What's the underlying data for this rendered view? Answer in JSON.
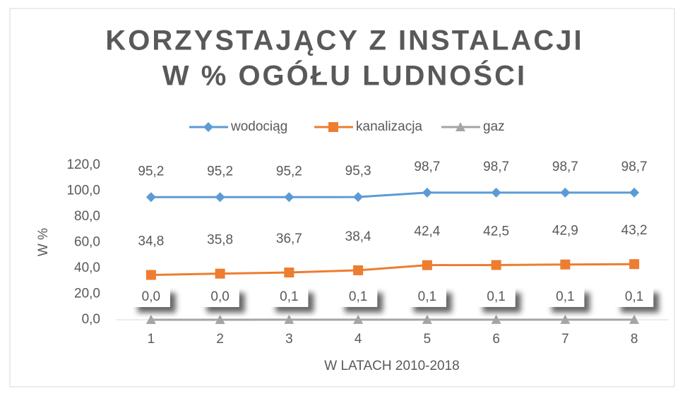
{
  "chart_data": {
    "type": "line",
    "title": [
      "KORZYSTAJĄCY Z INSTALACJI",
      "W % OGÓŁU LUDNOŚCI"
    ],
    "x_label": "W LATACH 2010-2018",
    "y_label": "W %",
    "categories": [
      "1",
      "2",
      "3",
      "4",
      "5",
      "6",
      "7",
      "8"
    ],
    "series": [
      {
        "name": "wodociąg",
        "color": "#5b9bd5",
        "marker": "diamond",
        "values": [
          95.2,
          95.2,
          95.2,
          95.3,
          98.7,
          98.7,
          98.7,
          98.7
        ],
        "value_labels": [
          "95,2",
          "95,2",
          "95,2",
          "95,3",
          "98,7",
          "98,7",
          "98,7",
          "98,7"
        ]
      },
      {
        "name": "kanalizacja",
        "color": "#ed7d31",
        "marker": "square",
        "values": [
          34.8,
          35.8,
          36.7,
          38.4,
          42.4,
          42.5,
          42.9,
          43.2
        ],
        "value_labels": [
          "34,8",
          "35,8",
          "36,7",
          "38,4",
          "42,4",
          "42,5",
          "42,9",
          "43,2"
        ]
      },
      {
        "name": "gaz",
        "color": "#a5a5a5",
        "marker": "triangle",
        "values": [
          0.0,
          0.0,
          0.1,
          0.1,
          0.1,
          0.1,
          0.1,
          0.1
        ],
        "value_labels": [
          "0,0",
          "0,0",
          "0,1",
          "0,1",
          "0,1",
          "0,1",
          "0,1",
          "0,1"
        ]
      }
    ],
    "ylim": [
      0,
      120
    ],
    "yticks": [
      {
        "value": 0,
        "label": "0,0"
      },
      {
        "value": 20,
        "label": "20,0"
      },
      {
        "value": 40,
        "label": "40,0"
      },
      {
        "value": 60,
        "label": "60,0"
      },
      {
        "value": 80,
        "label": "80,0"
      },
      {
        "value": 100,
        "label": "100,0"
      },
      {
        "value": 120,
        "label": "120,0"
      }
    ],
    "grid": false,
    "legend": "top"
  }
}
